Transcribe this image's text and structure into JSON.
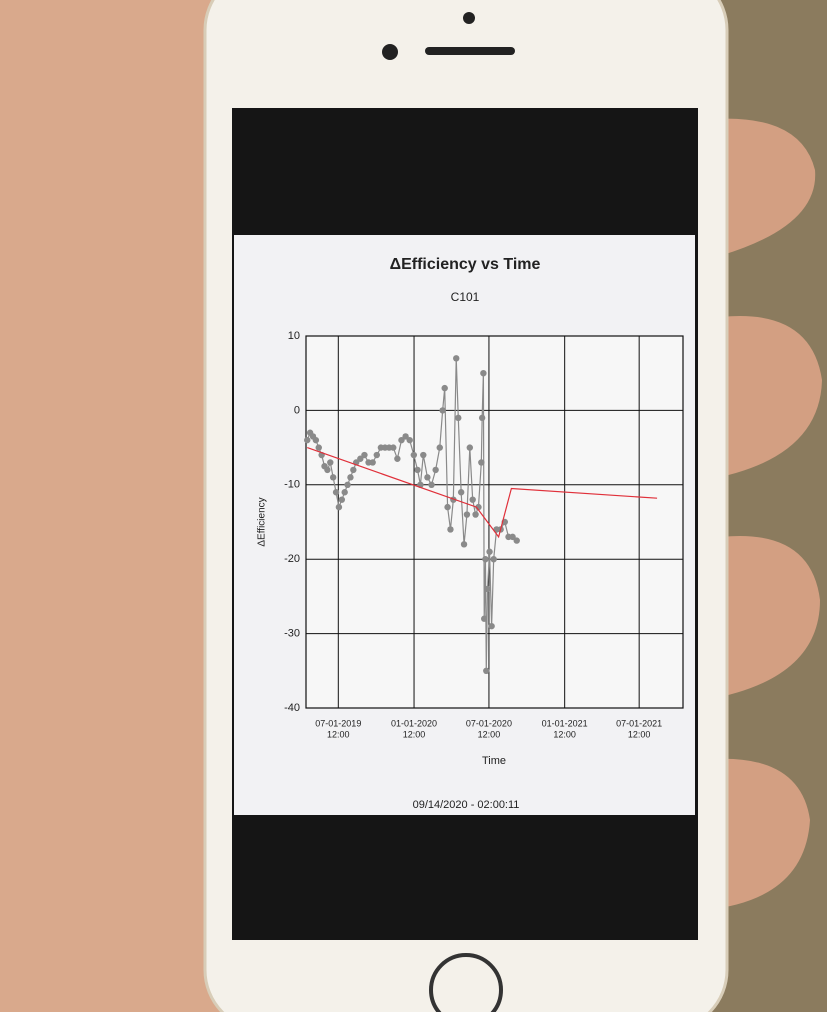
{
  "chart_data": {
    "type": "line",
    "title": "ΔEfficiency vs Time",
    "subtitle": "C101",
    "x_label": "Time",
    "y_label": "ΔEfficiency",
    "footer": "09/14/2020 - 02:00:11",
    "xlim": [
      "2019-04-14",
      "2021-10-16"
    ],
    "xticks": [
      {
        "value": "2019-07-01T12:00",
        "label": [
          "07-01-2019",
          "12:00"
        ]
      },
      {
        "value": "2020-01-01T12:00",
        "label": [
          "01-01-2020",
          "12:00"
        ]
      },
      {
        "value": "2020-07-01T12:00",
        "label": [
          "07-01-2020",
          "12:00"
        ]
      },
      {
        "value": "2021-01-01T12:00",
        "label": [
          "01-01-2021",
          "12:00"
        ]
      },
      {
        "value": "2021-07-01T12:00",
        "label": [
          "07-01-2021",
          "12:00"
        ]
      }
    ],
    "ylim": [
      -40,
      10
    ],
    "yticks": [
      10,
      0,
      -10,
      -20,
      -30,
      -40
    ],
    "grid": true,
    "series": [
      {
        "color": "#8a8a8a",
        "markers": true,
        "x": [
          "2019-04-17",
          "2019-04-24",
          "2019-05-01",
          "2019-05-08",
          "2019-05-15",
          "2019-05-22",
          "2019-05-29",
          "2019-06-05",
          "2019-06-12",
          "2019-06-19",
          "2019-06-26",
          "2019-07-03",
          "2019-07-10",
          "2019-07-17",
          "2019-07-24",
          "2019-07-31",
          "2019-08-07",
          "2019-08-14",
          "2019-08-24",
          "2019-09-03",
          "2019-09-13",
          "2019-09-23",
          "2019-10-03",
          "2019-10-13",
          "2019-10-23",
          "2019-11-02",
          "2019-11-12",
          "2019-11-22",
          "2019-12-02",
          "2019-12-12",
          "2019-12-22",
          "2020-01-01",
          "2020-01-10",
          "2020-01-17",
          "2020-01-24",
          "2020-02-03",
          "2020-02-13",
          "2020-02-23",
          "2020-03-04",
          "2020-03-11",
          "2020-03-16",
          "2020-03-23",
          "2020-03-30",
          "2020-04-06",
          "2020-04-13",
          "2020-04-18",
          "2020-04-25",
          "2020-05-02",
          "2020-05-09",
          "2020-05-16",
          "2020-05-23",
          "2020-05-30",
          "2020-06-06",
          "2020-06-13",
          "2020-06-15",
          "2020-06-18",
          "2020-06-20",
          "2020-06-23",
          "2020-06-25",
          "2020-06-28",
          "2020-07-03",
          "2020-07-08",
          "2020-07-13",
          "2020-07-20",
          "2020-07-30",
          "2020-08-09",
          "2020-08-18",
          "2020-08-28",
          "2020-09-07"
        ],
        "values": [
          -4,
          -3,
          -3.5,
          -4,
          -5,
          -6,
          -7.5,
          -8,
          -7,
          -9,
          -11,
          -13,
          -12,
          -11,
          -10,
          -9,
          -8,
          -7,
          -6.5,
          -6,
          -7,
          -7,
          -6,
          -5,
          -5,
          -5,
          -5,
          -6.5,
          -4,
          -3.5,
          -4,
          -6,
          -8,
          -10,
          -6,
          -9,
          -10,
          -8,
          -5,
          0,
          3,
          -13,
          -16,
          -12,
          7,
          -1,
          -11,
          -18,
          -14,
          -5,
          -12,
          -14,
          -13,
          -7,
          -1,
          5,
          -28,
          -20,
          -35,
          -24,
          -19,
          -29,
          -20,
          -16,
          -16,
          -15,
          -17,
          -17,
          -17.5
        ]
      },
      {
        "color": "#e0303a",
        "markers": false,
        "x": [
          "2019-04-17",
          "2020-06-01",
          "2020-07-25",
          "2020-08-25",
          "2021-08-14"
        ],
        "values": [
          -5,
          -13,
          -17,
          -10.5,
          -11.8
        ]
      }
    ]
  }
}
